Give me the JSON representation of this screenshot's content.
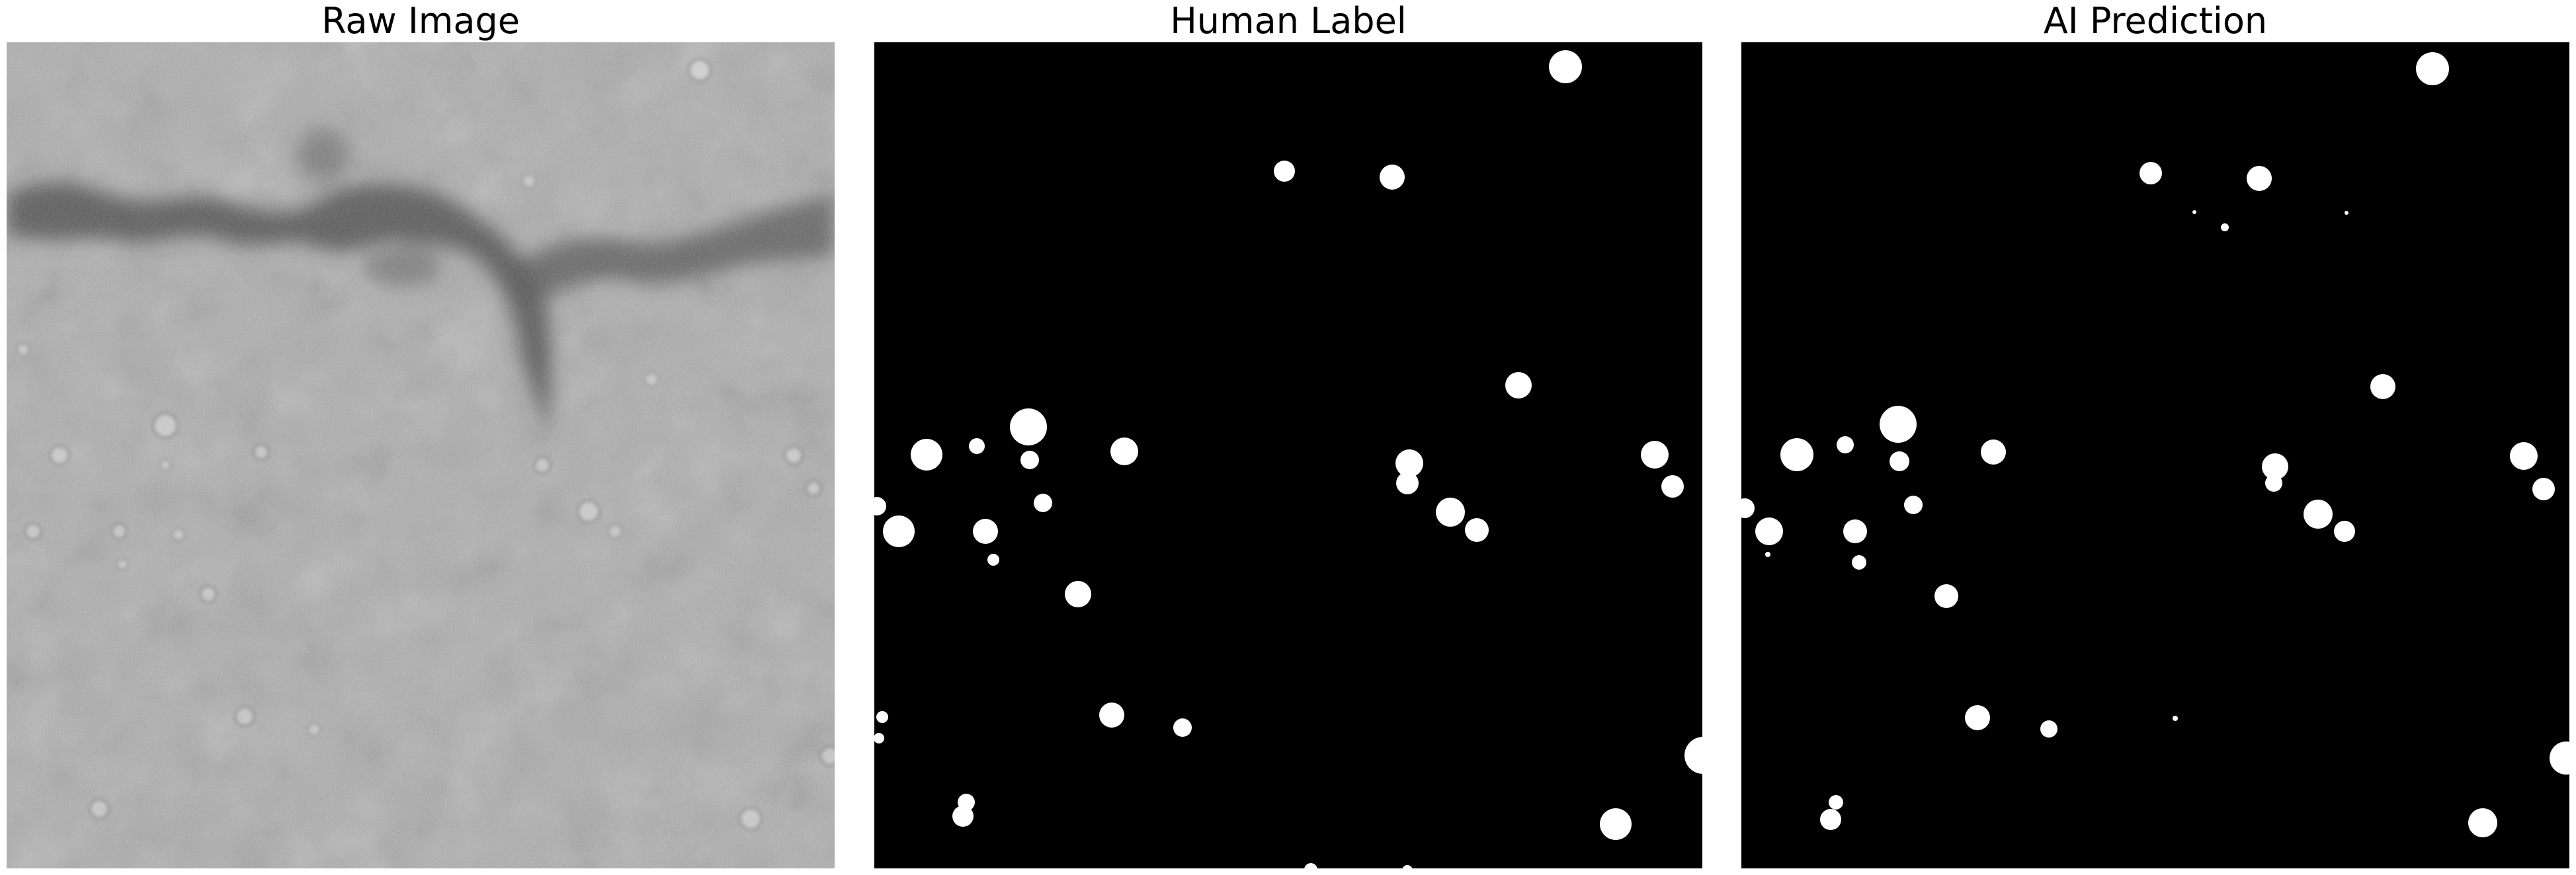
{
  "figure": {
    "panels": [
      {
        "id": "raw",
        "title": "Raw Image",
        "kind": "grayscale-micrograph"
      },
      {
        "id": "human",
        "title": "Human Label",
        "kind": "binary-mask"
      },
      {
        "id": "ai",
        "title": "AI Prediction",
        "kind": "binary-mask"
      }
    ],
    "colors": {
      "background": "#ffffff",
      "mask_background": "#000000",
      "mask_foreground": "#ffffff",
      "raw_base": "#a8a8a8",
      "raw_dark_streak": "#2e2e2e"
    }
  }
}
